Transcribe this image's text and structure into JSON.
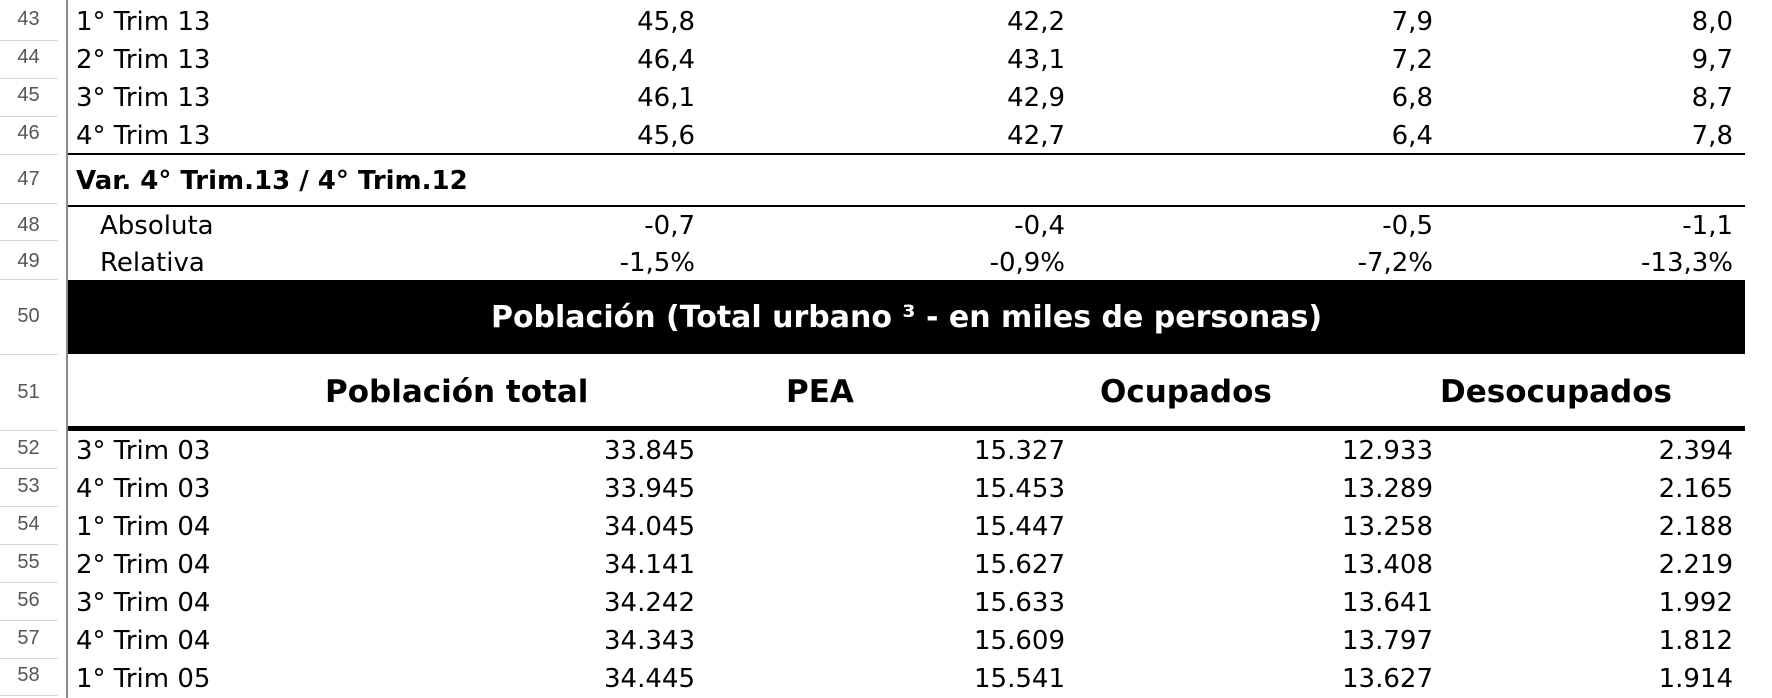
{
  "row_numbers": [
    "43",
    "44",
    "45",
    "46",
    "47",
    "48",
    "49",
    "50",
    "51",
    "52",
    "53",
    "54",
    "55",
    "56",
    "57",
    "58"
  ],
  "top_rows": [
    {
      "label": "1° Trim 13",
      "values": [
        "45,8",
        "42,2",
        "7,9",
        "8,0"
      ]
    },
    {
      "label": "2° Trim 13",
      "values": [
        "46,4",
        "43,1",
        "7,2",
        "9,7"
      ]
    },
    {
      "label": "3° Trim 13",
      "values": [
        "46,1",
        "42,9",
        "6,8",
        "8,7"
      ]
    },
    {
      "label": "4° Trim 13",
      "values": [
        "45,6",
        "42,7",
        "6,4",
        "7,8"
      ]
    }
  ],
  "variation": {
    "title": "Var. 4° Trim.13 / 4° Trim.12",
    "rows": [
      {
        "label": "Absoluta",
        "values": [
          "-0,7",
          "-0,4",
          "-0,5",
          "-1,1"
        ]
      },
      {
        "label": "Relativa",
        "values": [
          "-1,5%",
          "-0,9%",
          "-7,2%",
          "-13,3%"
        ]
      }
    ]
  },
  "section_banner": "Población (Total urbano ³ - en miles de personas)",
  "column_headers": [
    "Población total",
    "PEA",
    "Ocupados",
    "Desocupados"
  ],
  "bottom_rows": [
    {
      "label": "3° Trim 03",
      "values": [
        "33.845",
        "15.327",
        "12.933",
        "2.394"
      ]
    },
    {
      "label": "4° Trim 03",
      "values": [
        "33.945",
        "15.453",
        "13.289",
        "2.165"
      ]
    },
    {
      "label": "1° Trim 04",
      "values": [
        "34.045",
        "15.447",
        "13.258",
        "2.188"
      ]
    },
    {
      "label": "2° Trim 04",
      "values": [
        "34.141",
        "15.627",
        "13.408",
        "2.219"
      ]
    },
    {
      "label": "3° Trim 04",
      "values": [
        "34.242",
        "15.633",
        "13.641",
        "1.992"
      ]
    },
    {
      "label": "4° Trim 04",
      "values": [
        "34.343",
        "15.609",
        "13.797",
        "1.812"
      ]
    },
    {
      "label": "1° Trim 05",
      "values": [
        "34.445",
        "15.541",
        "13.627",
        "1.914"
      ]
    }
  ]
}
